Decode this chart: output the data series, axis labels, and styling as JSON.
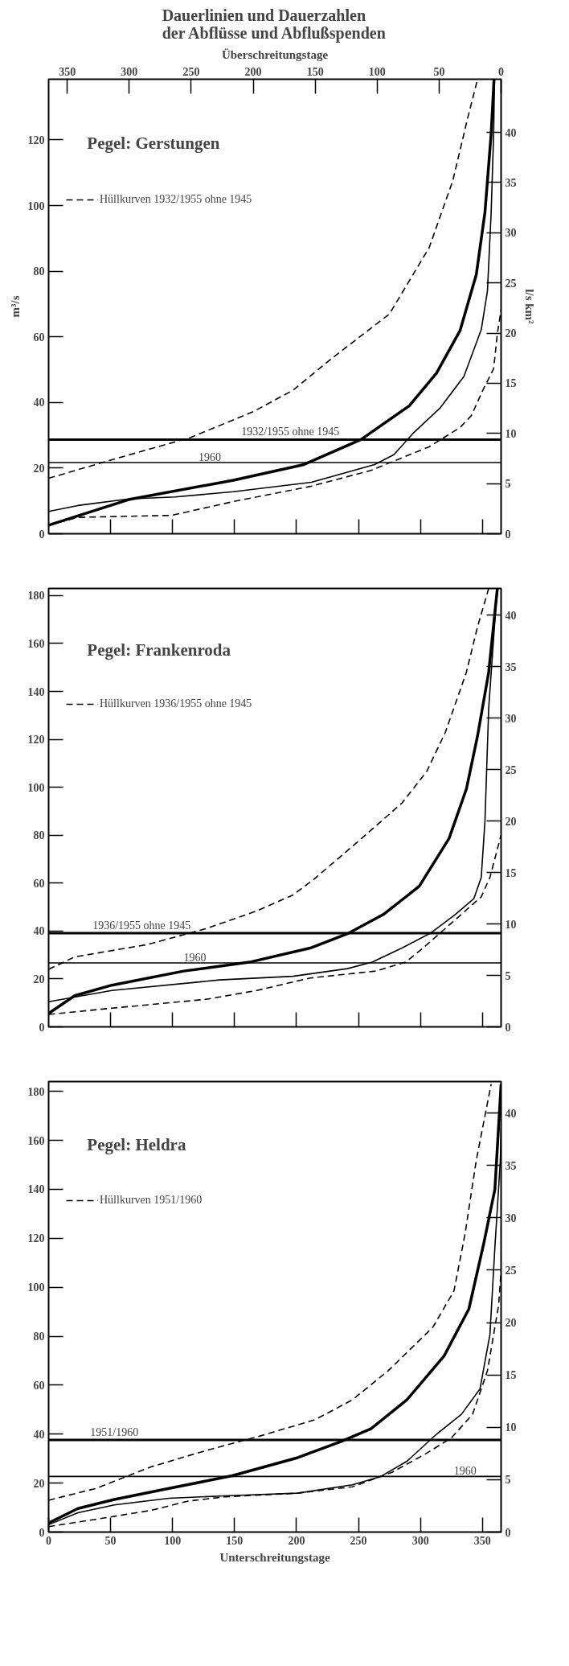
{
  "chart_data": [
    {
      "type": "line",
      "title": "Dauerlinien und Dauerzahlen\nder Abflüsse und Abflußspenden",
      "subtitle": "Pegel: Gerstungen",
      "x2label": "Überschreitungstage",
      "ylabel": "m³/s",
      "y2label": "l/s km²",
      "xlim": [
        0,
        365
      ],
      "x2lim": [
        365,
        0
      ],
      "ylim": [
        0,
        138.5
      ],
      "y2lim": [
        0,
        45.3
      ],
      "tick_labels": "y",
      "xticks": [
        50,
        100,
        150,
        200,
        250,
        300,
        350
      ],
      "x2ticks": [
        350,
        300,
        250,
        200,
        150,
        100,
        50,
        0
      ],
      "yticks": [
        0,
        20,
        40,
        60,
        80,
        100,
        120
      ],
      "y2ticks": [
        0,
        5,
        10,
        15,
        20,
        25,
        30,
        35,
        40
      ],
      "legend": "top left",
      "series": [
        {
          "color": "#000000",
          "line_style": "solid",
          "x": [
            0,
            64.5,
            149,
            206,
            252,
            291,
            313,
            332,
            345,
            352,
            357,
            359.3
          ],
          "values": [
            2.6,
            10.4,
            16.3,
            21.1,
            28.7,
            39,
            49,
            62,
            79,
            98,
            122,
            138.5
          ]
        },
        {
          "color": "#000000",
          "line_style": "solid",
          "x": [
            0,
            23.6,
            64.5,
            102,
            149,
            212,
            263,
            278.5,
            294,
            316,
            335,
            349,
            354,
            357,
            359,
            359.7
          ],
          "values": [
            6.8,
            8.6,
            10.6,
            11.2,
            12.8,
            15.7,
            21.1,
            24.1,
            30.6,
            38.4,
            47.9,
            62.2,
            74,
            98,
            122,
            138.5
          ]
        },
        {
          "name": "Hüllkurven 1932/1955 ohne 1945",
          "color": "#000000",
          "line_style": "dashed",
          "x": [
            0,
            48.8,
            115,
            165,
            197,
            228,
            275,
            307,
            326,
            338,
            346
          ],
          "values": [
            16.9,
            22.3,
            29.4,
            37.2,
            43.7,
            53.3,
            67,
            87.2,
            107.5,
            126.6,
            138.5
          ]
        },
        {
          "color": "#000000",
          "line_style": "dashed",
          "x": [
            0,
            23.6,
            99,
            149,
            212,
            260,
            307,
            332,
            341,
            351,
            359,
            362,
            365
          ],
          "values": [
            2.6,
            5,
            5.6,
            9.8,
            14.5,
            19.3,
            26.5,
            32.4,
            36,
            44.3,
            50.3,
            61,
            68.2
          ]
        }
      ],
      "ref_lines": [
        {
          "axis": "y",
          "value": 28.7,
          "color": "#000000"
        },
        {
          "axis": "y",
          "value": 21.7,
          "color": "#000000"
        }
      ],
      "annotations": [
        {
          "text": "1932/1955 ohne 1945",
          "x": 195,
          "y": 28.7
        },
        {
          "text": "1960",
          "x": 130,
          "y": 21.7
        }
      ]
    },
    {
      "type": "line",
      "subtitle": "Pegel: Frankenroda",
      "xlim": [
        0,
        365
      ],
      "ylim": [
        0,
        183
      ],
      "y2lim": [
        0,
        42.6
      ],
      "tick_labels": "y",
      "xticks": [
        50,
        100,
        150,
        200,
        250,
        300,
        350
      ],
      "yticks": [
        0,
        20,
        40,
        60,
        80,
        100,
        120,
        140,
        160,
        180
      ],
      "y2ticks": [
        0,
        5,
        10,
        15,
        20,
        25,
        30,
        35,
        40
      ],
      "legend": "top left",
      "series": [
        {
          "color": "#000000",
          "line_style": "solid",
          "x": [
            0,
            21,
            51,
            109,
            162,
            211,
            242,
            270,
            299,
            323,
            337,
            346,
            355,
            362
          ],
          "values": [
            5.6,
            13,
            17.4,
            23.3,
            27,
            32.9,
            39.1,
            46.9,
            58.7,
            78.6,
            99.3,
            121.4,
            148,
            183
          ]
        },
        {
          "color": "#000000",
          "line_style": "solid",
          "x": [
            0,
            51,
            138,
            197,
            241,
            261,
            285,
            308,
            328,
            343,
            349,
            352,
            355,
            361,
            362
          ],
          "values": [
            10.5,
            15.2,
            19.6,
            21.1,
            24.3,
            27,
            32.9,
            39.1,
            46.9,
            53.5,
            62.4,
            86,
            133,
            177,
            183
          ]
        },
        {
          "name": "Hüllkurven 1936/1955 ohne 1945",
          "color": "#000000",
          "line_style": "dashed",
          "x": [
            0,
            21,
            80,
            127,
            168,
            197,
            214,
            249,
            285,
            305,
            320,
            337,
            346,
            355
          ],
          "values": [
            24,
            29.2,
            34.4,
            41,
            48.4,
            55,
            61.6,
            77.1,
            93.4,
            106.6,
            122.9,
            148,
            167,
            183
          ]
        },
        {
          "color": "#000000",
          "line_style": "dashed",
          "x": [
            0,
            51,
            127,
            168,
            211,
            264,
            288,
            302,
            328,
            349,
            356,
            365
          ],
          "values": [
            5.2,
            7.8,
            11.5,
            15.2,
            20.4,
            23.3,
            27,
            32.9,
            44.7,
            54.3,
            62.4,
            80.1
          ]
        }
      ],
      "ref_lines": [
        {
          "axis": "y",
          "value": 39.1,
          "color": "#000000"
        },
        {
          "axis": "y",
          "value": 26.7,
          "color": "#000000"
        }
      ],
      "annotations": [
        {
          "text": "1936/1955 ohne 1945",
          "x": 75,
          "y": 39.1
        },
        {
          "text": "1960",
          "x": 118,
          "y": 26.7
        }
      ]
    },
    {
      "type": "line",
      "subtitle": "Pegel: Heldra",
      "xlabel": "Unterschreitungstage",
      "xlim": [
        0,
        365
      ],
      "ylim": [
        0,
        184
      ],
      "y2lim": [
        0,
        43
      ],
      "xticks": [
        0,
        50,
        100,
        150,
        200,
        250,
        300,
        350
      ],
      "yticks": [
        0,
        20,
        40,
        60,
        80,
        100,
        120,
        140,
        160,
        180
      ],
      "y2ticks": [
        0,
        5,
        10,
        15,
        20,
        25,
        30,
        35,
        40
      ],
      "legend": "top left",
      "series": [
        {
          "color": "#000000",
          "line_style": "solid",
          "x": [
            0,
            23.6,
            53,
            97,
            148,
            201,
            236,
            260,
            289,
            319,
            339,
            351,
            360,
            365
          ],
          "values": [
            3.7,
            9.6,
            13.3,
            17.8,
            23,
            30.4,
            37,
            42.2,
            54,
            71.9,
            91.1,
            117.8,
            140,
            183
          ]
        },
        {
          "color": "#000000",
          "line_style": "solid",
          "x": [
            0,
            23.6,
            53,
            97,
            142,
            201,
            245,
            268,
            289,
            313,
            333,
            348,
            356,
            360,
            364.4,
            365
          ],
          "values": [
            3,
            7.9,
            11.1,
            13.8,
            14.8,
            15.9,
            19.3,
            22.7,
            28.9,
            40,
            48.1,
            58.5,
            80.7,
            116.3,
            151.9,
            165
          ]
        },
        {
          "name": "Hüllkurven 1951/1960",
          "color": "#000000",
          "line_style": "dashed",
          "x": [
            0,
            38,
            83,
            127,
            171,
            215,
            245,
            274,
            310,
            327,
            336,
            345,
            357
          ],
          "values": [
            13,
            17.8,
            26.7,
            33.3,
            39.3,
            45.9,
            54,
            65.9,
            83.7,
            98.5,
            122,
            151.9,
            183
          ]
        },
        {
          "color": "#000000",
          "line_style": "dashed",
          "x": [
            0,
            38,
            83,
            112,
            142,
            201,
            245,
            277,
            304,
            325,
            342,
            354,
            363,
            365
          ],
          "values": [
            2.2,
            5.2,
            8.9,
            12.6,
            14.4,
            15.9,
            18.5,
            24.4,
            31.9,
            38.5,
            48.1,
            65.9,
            92.6,
            107
          ]
        }
      ],
      "ref_lines": [
        {
          "axis": "y",
          "value": 37.6,
          "color": "#000000"
        },
        {
          "axis": "y",
          "value": 22.7,
          "color": "#000000"
        }
      ],
      "annotations": [
        {
          "text": "1951/1960",
          "x": 53,
          "y": 37.6
        },
        {
          "text": "1960",
          "x": 336,
          "y": 22.7
        }
      ]
    }
  ]
}
